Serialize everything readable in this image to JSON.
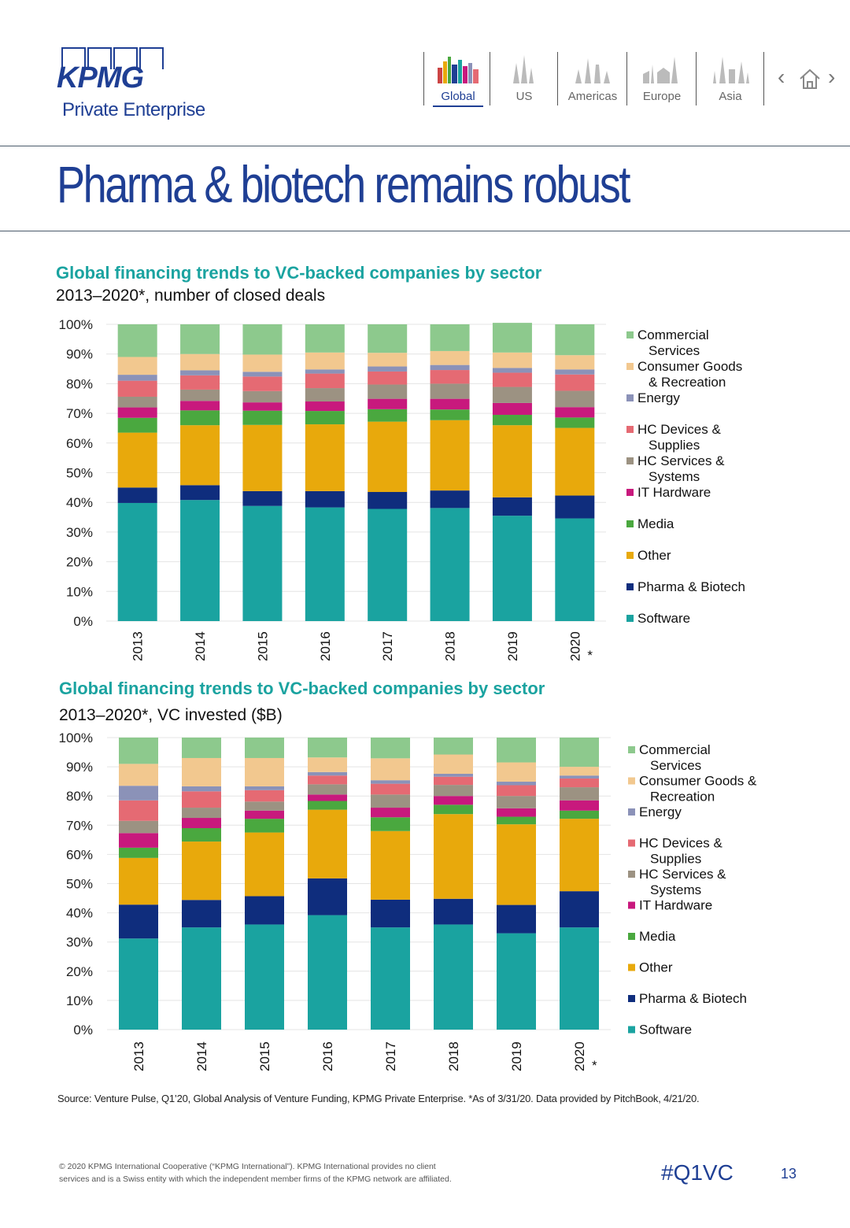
{
  "header": {
    "brand": "KPMG",
    "brand_sub": "Private Enterprise",
    "nav": [
      {
        "label": "Global",
        "active": true
      },
      {
        "label": "US",
        "active": false
      },
      {
        "label": "Americas",
        "active": false
      },
      {
        "label": "Europe",
        "active": false
      },
      {
        "label": "Asia",
        "active": false
      }
    ]
  },
  "page_title": "Pharma & biotech remains robust",
  "colors": {
    "brand_blue": "#1f3f94",
    "teal_title": "#1aa3a0"
  },
  "chart_data": [
    {
      "type": "bar",
      "stacked": true,
      "title": "Global financing trends to VC-backed companies by sector",
      "subtitle": "2013–2020*, number of closed deals",
      "categories": [
        "2013",
        "2014",
        "2015",
        "2016",
        "2017",
        "2018",
        "2019",
        "2020"
      ],
      "category_note": {
        "2020": "*"
      },
      "y_ticks": [
        "0%",
        "10%",
        "20%",
        "30%",
        "40%",
        "50%",
        "60%",
        "70%",
        "80%",
        "90%",
        "100%"
      ],
      "ylim": [
        0,
        100
      ],
      "series": [
        {
          "name": "Software",
          "color": "#1aa3a0",
          "values": [
            39.8,
            40.8,
            38.8,
            38.3,
            37.8,
            38.1,
            35.5,
            34.6
          ]
        },
        {
          "name": "Pharma & Biotech",
          "color": "#0f2d7d",
          "values": [
            5.2,
            5.0,
            5.0,
            5.5,
            5.7,
            5.9,
            6.2,
            7.7
          ]
        },
        {
          "name": "Other",
          "color": "#e8a90c",
          "values": [
            18.5,
            20.2,
            22.3,
            22.5,
            23.7,
            23.7,
            24.3,
            22.8
          ]
        },
        {
          "name": "Media",
          "color": "#4aa83f",
          "values": [
            5.0,
            5.0,
            4.8,
            4.5,
            4.2,
            3.6,
            3.5,
            3.5
          ]
        },
        {
          "name": "IT Hardware",
          "color": "#c8197d",
          "values": [
            3.5,
            3.2,
            2.8,
            3.2,
            3.5,
            3.6,
            4.0,
            3.5
          ]
        },
        {
          "name": "HC Services & Systems",
          "color": "#9c9282",
          "values": [
            3.6,
            3.8,
            3.8,
            4.5,
            4.8,
            5.1,
            5.4,
            5.5
          ]
        },
        {
          "name": "HC Devices & Supplies",
          "color": "#e56a73",
          "values": [
            5.4,
            4.8,
            4.9,
            4.9,
            4.4,
            4.6,
            4.8,
            5.5
          ]
        },
        {
          "name": "Energy",
          "color": "#8b92b8",
          "values": [
            2.0,
            1.7,
            1.6,
            1.4,
            1.7,
            1.7,
            1.6,
            1.7
          ]
        },
        {
          "name": "Consumer Goods & Recreation",
          "color": "#f2c88f",
          "values": [
            6.0,
            5.5,
            5.8,
            5.7,
            4.6,
            4.7,
            5.2,
            4.8
          ]
        },
        {
          "name": "Commercial Services",
          "color": "#8dc98d",
          "values": [
            11.0,
            10.0,
            10.2,
            9.5,
            9.6,
            9.0,
            10.0,
            10.4
          ]
        }
      ],
      "legend": [
        {
          "name": "Commercial Services",
          "lines": [
            "Commercial",
            "Services"
          ],
          "color": "#8dc98d"
        },
        {
          "name": "Consumer Goods & Recreation",
          "lines": [
            "Consumer Goods",
            "& Recreation"
          ],
          "color": "#f2c88f"
        },
        {
          "name": "Energy",
          "lines": [
            "Energy"
          ],
          "color": "#8b92b8"
        },
        {
          "name": "HC Devices & Supplies",
          "lines": [
            "HC Devices &",
            "Supplies"
          ],
          "color": "#e56a73"
        },
        {
          "name": "HC Services & Systems",
          "lines": [
            "HC Services &",
            "Systems"
          ],
          "color": "#9c9282"
        },
        {
          "name": "IT Hardware",
          "lines": [
            "IT Hardware"
          ],
          "color": "#c8197d"
        },
        {
          "name": "Media",
          "lines": [
            "Media"
          ],
          "color": "#4aa83f"
        },
        {
          "name": "Other",
          "lines": [
            "Other"
          ],
          "color": "#e8a90c"
        },
        {
          "name": "Pharma & Biotech",
          "lines": [
            "Pharma & Biotech"
          ],
          "color": "#0f2d7d"
        },
        {
          "name": "Software",
          "lines": [
            "Software"
          ],
          "color": "#1aa3a0"
        }
      ]
    },
    {
      "type": "bar",
      "stacked": true,
      "title": "Global financing trends to VC-backed companies by sector",
      "subtitle": "2013–2020*, VC invested ($B)",
      "categories": [
        "2013",
        "2014",
        "2015",
        "2016",
        "2017",
        "2018",
        "2019",
        "2020"
      ],
      "category_note": {
        "2020": "*"
      },
      "y_ticks": [
        "0%",
        "10%",
        "20%",
        "30%",
        "40%",
        "50%",
        "60%",
        "70%",
        "80%",
        "90%",
        "100%"
      ],
      "ylim": [
        0,
        100
      ],
      "series": [
        {
          "name": "Software",
          "color": "#1aa3a0",
          "values": [
            31.2,
            35.0,
            36.0,
            39.2,
            35.0,
            36.0,
            33.0,
            35.0
          ]
        },
        {
          "name": "Pharma & Biotech",
          "color": "#0f2d7d",
          "values": [
            11.6,
            9.4,
            9.7,
            12.6,
            9.5,
            8.8,
            9.7,
            12.4
          ]
        },
        {
          "name": "Other",
          "color": "#e8a90c",
          "values": [
            16.0,
            20.0,
            21.8,
            23.5,
            23.5,
            29.0,
            27.6,
            24.8
          ]
        },
        {
          "name": "Media",
          "color": "#4aa83f",
          "values": [
            3.5,
            4.6,
            4.7,
            3.0,
            4.7,
            3.2,
            2.6,
            2.8
          ]
        },
        {
          "name": "IT Hardware",
          "color": "#c8197d",
          "values": [
            5.0,
            3.5,
            2.8,
            2.2,
            3.3,
            3.0,
            2.9,
            3.5
          ]
        },
        {
          "name": "HC Services & Systems",
          "color": "#9c9282",
          "values": [
            4.2,
            3.5,
            3.1,
            3.5,
            4.5,
            3.8,
            4.2,
            4.5
          ]
        },
        {
          "name": "HC Devices & Supplies",
          "color": "#e56a73",
          "values": [
            7.0,
            5.6,
            3.9,
            3.0,
            3.7,
            2.8,
            3.7,
            3.0
          ]
        },
        {
          "name": "Energy",
          "color": "#8b92b8",
          "values": [
            5.0,
            1.7,
            1.3,
            1.2,
            1.2,
            1.0,
            1.2,
            1.0
          ]
        },
        {
          "name": "Consumer Goods & Recreation",
          "color": "#f2c88f",
          "values": [
            7.5,
            9.7,
            9.7,
            5.0,
            7.5,
            6.6,
            6.6,
            3.0
          ]
        },
        {
          "name": "Commercial Services",
          "color": "#8dc98d",
          "values": [
            9.0,
            7.0,
            7.0,
            6.8,
            7.1,
            5.8,
            8.5,
            10.0
          ]
        }
      ],
      "legend": [
        {
          "name": "Commercial Services",
          "lines": [
            "Commercial",
            "Services"
          ],
          "color": "#8dc98d"
        },
        {
          "name": "Consumer Goods & Recreation",
          "lines": [
            "Consumer Goods &",
            "Recreation"
          ],
          "color": "#f2c88f"
        },
        {
          "name": "Energy",
          "lines": [
            "Energy"
          ],
          "color": "#8b92b8"
        },
        {
          "name": "HC Devices & Supplies",
          "lines": [
            "HC Devices &",
            "Supplies"
          ],
          "color": "#e56a73"
        },
        {
          "name": "HC Services & Systems",
          "lines": [
            "HC Services &",
            "Systems"
          ],
          "color": "#9c9282"
        },
        {
          "name": "IT Hardware",
          "lines": [
            "IT Hardware"
          ],
          "color": "#c8197d"
        },
        {
          "name": "Media",
          "lines": [
            "Media"
          ],
          "color": "#4aa83f"
        },
        {
          "name": "Other",
          "lines": [
            "Other"
          ],
          "color": "#e8a90c"
        },
        {
          "name": "Pharma & Biotech",
          "lines": [
            "Pharma & Biotech"
          ],
          "color": "#0f2d7d"
        },
        {
          "name": "Software",
          "lines": [
            "Software"
          ],
          "color": "#1aa3a0"
        }
      ]
    }
  ],
  "footer": {
    "source": "Source: Venture Pulse, Q1’20, Global Analysis of Venture Funding, KPMG Private Enterprise. *As of 3/31/20. Data provided by PitchBook, 4/21/20.",
    "copyright_line1": "© 2020 KPMG International Cooperative (“KPMG International”). KPMG International provides no client",
    "copyright_line2": "services and is a Swiss entity with which the independent member firms of the KPMG network are affiliated.",
    "hashtag": "#Q1VC",
    "page_number": "13"
  }
}
